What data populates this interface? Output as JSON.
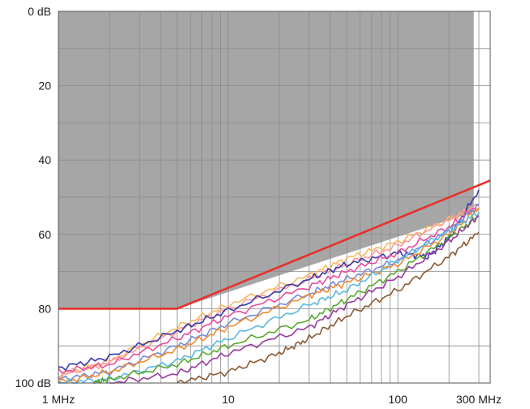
{
  "chart_data": {
    "type": "line",
    "title": "",
    "xlabel": "",
    "ylabel": "",
    "x_scale": "log",
    "xlim": [
      1,
      350
    ],
    "ylim": [
      0,
      100
    ],
    "y_inverted": true,
    "grid": true,
    "legend": "none",
    "x_ticks": [
      {
        "value": 1,
        "label": "1 MHz"
      },
      {
        "value": 10,
        "label": "10"
      },
      {
        "value": 100,
        "label": "100"
      },
      {
        "value": 300,
        "label": "300 MHz"
      }
    ],
    "y_ticks": [
      {
        "value": 0,
        "label": "0 dB"
      },
      {
        "value": 20,
        "label": "20"
      },
      {
        "value": 40,
        "label": "40"
      },
      {
        "value": 60,
        "label": "60"
      },
      {
        "value": 80,
        "label": "80"
      },
      {
        "value": 100,
        "label": "100 dB"
      }
    ],
    "limit_line": {
      "color": "#e8302a",
      "points": [
        [
          1,
          80
        ],
        [
          5,
          80
        ],
        [
          350,
          45.5
        ]
      ]
    },
    "shaded_region": {
      "color": "#a6a6a6",
      "points": [
        [
          1,
          0
        ],
        [
          1,
          80
        ],
        [
          5,
          80
        ],
        [
          280,
          54
        ],
        [
          280,
          0
        ]
      ]
    },
    "series": [
      {
        "color": "#f8b860",
        "points": [
          [
            1,
            98
          ],
          [
            2,
            94
          ],
          [
            5,
            85
          ],
          [
            10,
            79
          ],
          [
            30,
            71
          ],
          [
            50,
            66.5
          ],
          [
            100,
            62
          ],
          [
            200,
            56
          ],
          [
            300,
            53
          ]
        ]
      },
      {
        "color": "#ff9a9a",
        "points": [
          [
            1,
            98
          ],
          [
            2,
            94.5
          ],
          [
            5,
            86
          ],
          [
            10,
            80
          ],
          [
            30,
            72
          ],
          [
            50,
            68
          ],
          [
            100,
            63
          ],
          [
            200,
            56
          ],
          [
            300,
            52
          ]
        ]
      },
      {
        "color": "#3a3aa8",
        "points": [
          [
            1,
            96
          ],
          [
            2,
            93
          ],
          [
            5,
            86
          ],
          [
            10,
            80.5
          ],
          [
            30,
            72
          ],
          [
            50,
            68
          ],
          [
            100,
            65
          ],
          [
            150,
            66
          ],
          [
            200,
            61
          ],
          [
            300,
            48
          ]
        ]
      },
      {
        "color": "#e84b9e",
        "points": [
          [
            1,
            97
          ],
          [
            2,
            95
          ],
          [
            5,
            88
          ],
          [
            10,
            82
          ],
          [
            30,
            74
          ],
          [
            50,
            70
          ],
          [
            100,
            65
          ],
          [
            200,
            58
          ],
          [
            300,
            52
          ]
        ]
      },
      {
        "color": "#7a8ad8",
        "points": [
          [
            1,
            99
          ],
          [
            2,
            97
          ],
          [
            5,
            90
          ],
          [
            10,
            84
          ],
          [
            30,
            76
          ],
          [
            50,
            72
          ],
          [
            100,
            67
          ],
          [
            200,
            59
          ],
          [
            300,
            52
          ]
        ]
      },
      {
        "color": "#f08a30",
        "points": [
          [
            1,
            100
          ],
          [
            2,
            97
          ],
          [
            5,
            91
          ],
          [
            10,
            85
          ],
          [
            30,
            76.5
          ],
          [
            50,
            73
          ],
          [
            100,
            68
          ],
          [
            200,
            60
          ],
          [
            300,
            53
          ]
        ]
      },
      {
        "color": "#5ab8e0",
        "points": [
          [
            1,
            100
          ],
          [
            2,
            99
          ],
          [
            5,
            94
          ],
          [
            10,
            88
          ],
          [
            30,
            79
          ],
          [
            50,
            75
          ],
          [
            100,
            67
          ],
          [
            200,
            59
          ],
          [
            300,
            54
          ]
        ]
      },
      {
        "color": "#5aa832",
        "points": [
          [
            1.6,
            100
          ],
          [
            2,
            99
          ],
          [
            5,
            95
          ],
          [
            10,
            90
          ],
          [
            30,
            83
          ],
          [
            50,
            77.5
          ],
          [
            100,
            70
          ],
          [
            200,
            61
          ],
          [
            300,
            55
          ]
        ]
      },
      {
        "color": "#9a3aa0",
        "points": [
          [
            2,
            100
          ],
          [
            5,
            97.5
          ],
          [
            10,
            92
          ],
          [
            30,
            85
          ],
          [
            50,
            79
          ],
          [
            100,
            71.5
          ],
          [
            200,
            62
          ],
          [
            300,
            55
          ]
        ]
      },
      {
        "color": "#8a5a32",
        "points": [
          [
            5,
            100
          ],
          [
            10,
            97
          ],
          [
            20,
            92
          ],
          [
            30,
            88
          ],
          [
            50,
            82
          ],
          [
            100,
            75
          ],
          [
            200,
            66
          ],
          [
            300,
            59.5
          ]
        ]
      }
    ]
  }
}
